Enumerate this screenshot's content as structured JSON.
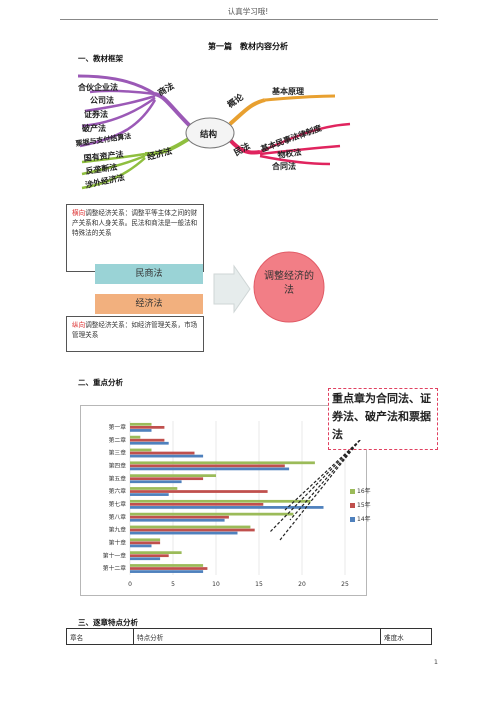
{
  "header": "认真学习哦!",
  "page_title": "第一篇　教材内容分析",
  "sections": {
    "s1": "一、教材框架",
    "s2": "二、重点分析",
    "s3": "三、逐章特点分析"
  },
  "mindmap": {
    "center": "结构",
    "left_top_branch": "商法",
    "left_top_items": [
      "合伙企业法",
      "公司法",
      "证券法",
      "破产法",
      "票据与支付结算法"
    ],
    "left_bottom_branch": "经济法",
    "left_bottom_items": [
      "国有资产法",
      "反垄断法",
      "涉外经济法"
    ],
    "right_top_branch": "概论",
    "right_top_items": [
      "基本原理"
    ],
    "right_bottom_branch": "民法",
    "right_bottom_items": [
      "基本民事法律制度",
      "物权法",
      "合同法"
    ]
  },
  "diagram": {
    "box1_prefix": "横向",
    "box1_text": "调整经济关系：调整平等主体之间的财产关系和人身关系。民法和商法是一般法和特殊法的关系",
    "tag1": "民商法",
    "tag2": "经济法",
    "box2_prefix": "纵向",
    "box2_text": "调整经济关系：如经济管理关系，市场管理关系",
    "circle": "调整经济的法"
  },
  "callout": "重点章为合同法、证券法、破产法和票据法",
  "chart_data": {
    "type": "bar",
    "orientation": "horizontal",
    "categories": [
      "第一章",
      "第二章",
      "第三章",
      "第四章",
      "第五章",
      "第六章",
      "第七章",
      "第八章",
      "第九章",
      "第十章",
      "第十一章",
      "第十二章"
    ],
    "series": [
      {
        "name": "16年",
        "color": "#9bbb59",
        "values": [
          2.5,
          1.2,
          2.5,
          21.5,
          10,
          5.5,
          21,
          19,
          14,
          3.5,
          6,
          8.5
        ]
      },
      {
        "name": "15年",
        "color": "#c0504d",
        "values": [
          4,
          4,
          7.5,
          18,
          8.5,
          16,
          15.5,
          11.5,
          14.5,
          3.5,
          4.5,
          9
        ]
      },
      {
        "name": "14年",
        "color": "#4f81bd",
        "values": [
          2.5,
          4.5,
          8.5,
          18.5,
          6,
          4.5,
          22.5,
          11,
          12.5,
          2.5,
          3.5,
          8.5
        ]
      }
    ],
    "xticks": [
      0,
      5,
      10,
      15,
      20,
      25
    ],
    "xlim": [
      0,
      25
    ],
    "legend": "right"
  },
  "table": {
    "headers": [
      "章名",
      "特点分析",
      "难度水"
    ]
  },
  "page_number": "1"
}
